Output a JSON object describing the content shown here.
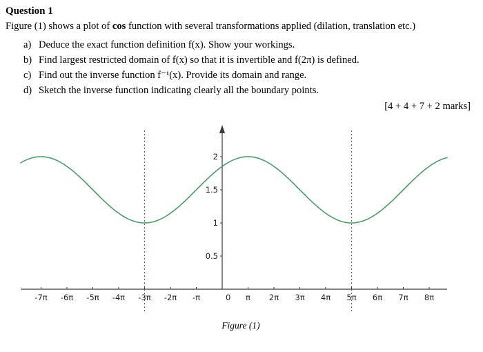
{
  "header": {
    "title": "Question 1",
    "intro_prefix": "Figure (1) shows a plot of ",
    "intro_bold": "cos",
    "intro_suffix": " function with several transformations applied (dilation, translation etc.)"
  },
  "questions": [
    {
      "label": "a)",
      "text": "Deduce the exact function definition f(x). Show your workings."
    },
    {
      "label": "b)",
      "text": "Find largest restricted domain of f(x) so that it is invertible and f(2π) is defined."
    },
    {
      "label": "c)",
      "text": "Find out the inverse function f⁻¹(x). Provide its domain and range."
    },
    {
      "label": "d)",
      "text": "Sketch the inverse function indicating clearly all the boundary points."
    }
  ],
  "marks": "[4 + 4 + 7 + 2 marks]",
  "figure_caption": "Figure (1)",
  "chart_data": {
    "type": "line",
    "title": "",
    "xlabel": "",
    "ylabel": "",
    "x_tick_labels": [
      "-7π",
      "-6π",
      "-5π",
      "-4π",
      "-3π",
      "-2π",
      "-π",
      "0",
      "π",
      "2π",
      "3π",
      "4π",
      "5π",
      "6π",
      "7π",
      "8π"
    ],
    "x_tick_values_pi": [
      -7,
      -6,
      -5,
      -4,
      -3,
      -2,
      -1,
      0,
      1,
      2,
      3,
      4,
      5,
      6,
      7,
      8
    ],
    "y_ticks": [
      0.5,
      1,
      1.5,
      2
    ],
    "origin_label": "0",
    "xlim_pi": [
      -7.8,
      8.7
    ],
    "ylim": [
      0,
      2.3
    ],
    "grid": false,
    "legend": "none",
    "curve": {
      "shape": "cosine",
      "midline": 1.5,
      "amplitude": 0.5,
      "period_pi": 8,
      "peak_x_pi": 1,
      "maxima_x_pi": [
        -7,
        1
      ],
      "minima_x_pi": [
        -3,
        5
      ],
      "y_max": 2,
      "y_min": 1
    },
    "dashed_lines_x_pi": [
      -3,
      5
    ],
    "curve_color": "#4e9b68",
    "axis_color": "#3a3a3a",
    "dashed_color": "#4a6b66",
    "tick_label_color": "#222222"
  }
}
